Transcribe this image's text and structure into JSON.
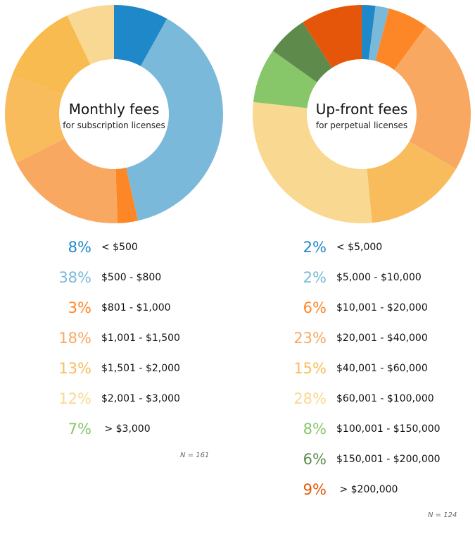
{
  "chart_data": [
    {
      "type": "pie",
      "title": "Monthly fees",
      "subtitle": "for subscription licenses",
      "n_label": "N = 161",
      "slices": [
        {
          "label": "< $500",
          "pct_label": "8%",
          "value": 8,
          "slice_color": "#1f88c8",
          "text_color": "#1f88c8"
        },
        {
          "label": "$500 - $800",
          "pct_label": "38%",
          "value": 38,
          "slice_color": "#7bb9da",
          "text_color": "#7bb9da"
        },
        {
          "label": "$801 - $1,000",
          "pct_label": "3%",
          "value": 3,
          "slice_color": "#fd8726",
          "text_color": "#fd8726"
        },
        {
          "label": "$1,001 - $1,500",
          "pct_label": "18%",
          "value": 18,
          "slice_color": "#f9a862",
          "text_color": "#f9a862"
        },
        {
          "label": "$1,501 - $2,000",
          "pct_label": "13%",
          "value": 13,
          "slice_color": "#f8bc5c",
          "text_color": "#f8bc5c"
        },
        {
          "label": "$2,001 - $3,000",
          "pct_label": "12%",
          "value": 12,
          "slice_color": "#f7bb50",
          "text_color": "#f9d891"
        },
        {
          "label": " > $3,000",
          "pct_label": "7%",
          "value": 7,
          "slice_color": "#f8d893",
          "text_color": "#88c66a"
        }
      ]
    },
    {
      "type": "pie",
      "title": "Up-front fees",
      "subtitle": "for perpetual licenses",
      "n_label": "N = 124",
      "slices": [
        {
          "label": "< $5,000",
          "pct_label": "2%",
          "value": 2,
          "slice_color": "#1f88c8",
          "text_color": "#1f88c8"
        },
        {
          "label": "$5,000 - $10,000",
          "pct_label": "2%",
          "value": 2,
          "slice_color": "#7bb9da",
          "text_color": "#7bb9da"
        },
        {
          "label": "$10,001 - $20,000",
          "pct_label": "6%",
          "value": 6,
          "slice_color": "#fd8726",
          "text_color": "#fd8726"
        },
        {
          "label": "$20,001 - $40,000",
          "pct_label": "23%",
          "value": 23,
          "slice_color": "#f9a862",
          "text_color": "#f9a862"
        },
        {
          "label": "$40,001 - $60,000",
          "pct_label": "15%",
          "value": 15,
          "slice_color": "#f8bc5c",
          "text_color": "#f8bc5c"
        },
        {
          "label": "$60,001 - $100,000",
          "pct_label": "28%",
          "value": 28,
          "slice_color": "#f9d891",
          "text_color": "#f9d891"
        },
        {
          "label": "$100,001 - $150,000",
          "pct_label": "8%",
          "value": 8,
          "slice_color": "#88c66a",
          "text_color": "#88c66a"
        },
        {
          "label": "$150,001 - $200,000",
          "pct_label": "6%",
          "value": 6,
          "slice_color": "#5e8b4b",
          "text_color": "#5e8b4b"
        },
        {
          "label": " > $200,000",
          "pct_label": "9%",
          "value": 9,
          "slice_color": "#e5560a",
          "text_color": "#e5560a"
        }
      ]
    }
  ]
}
